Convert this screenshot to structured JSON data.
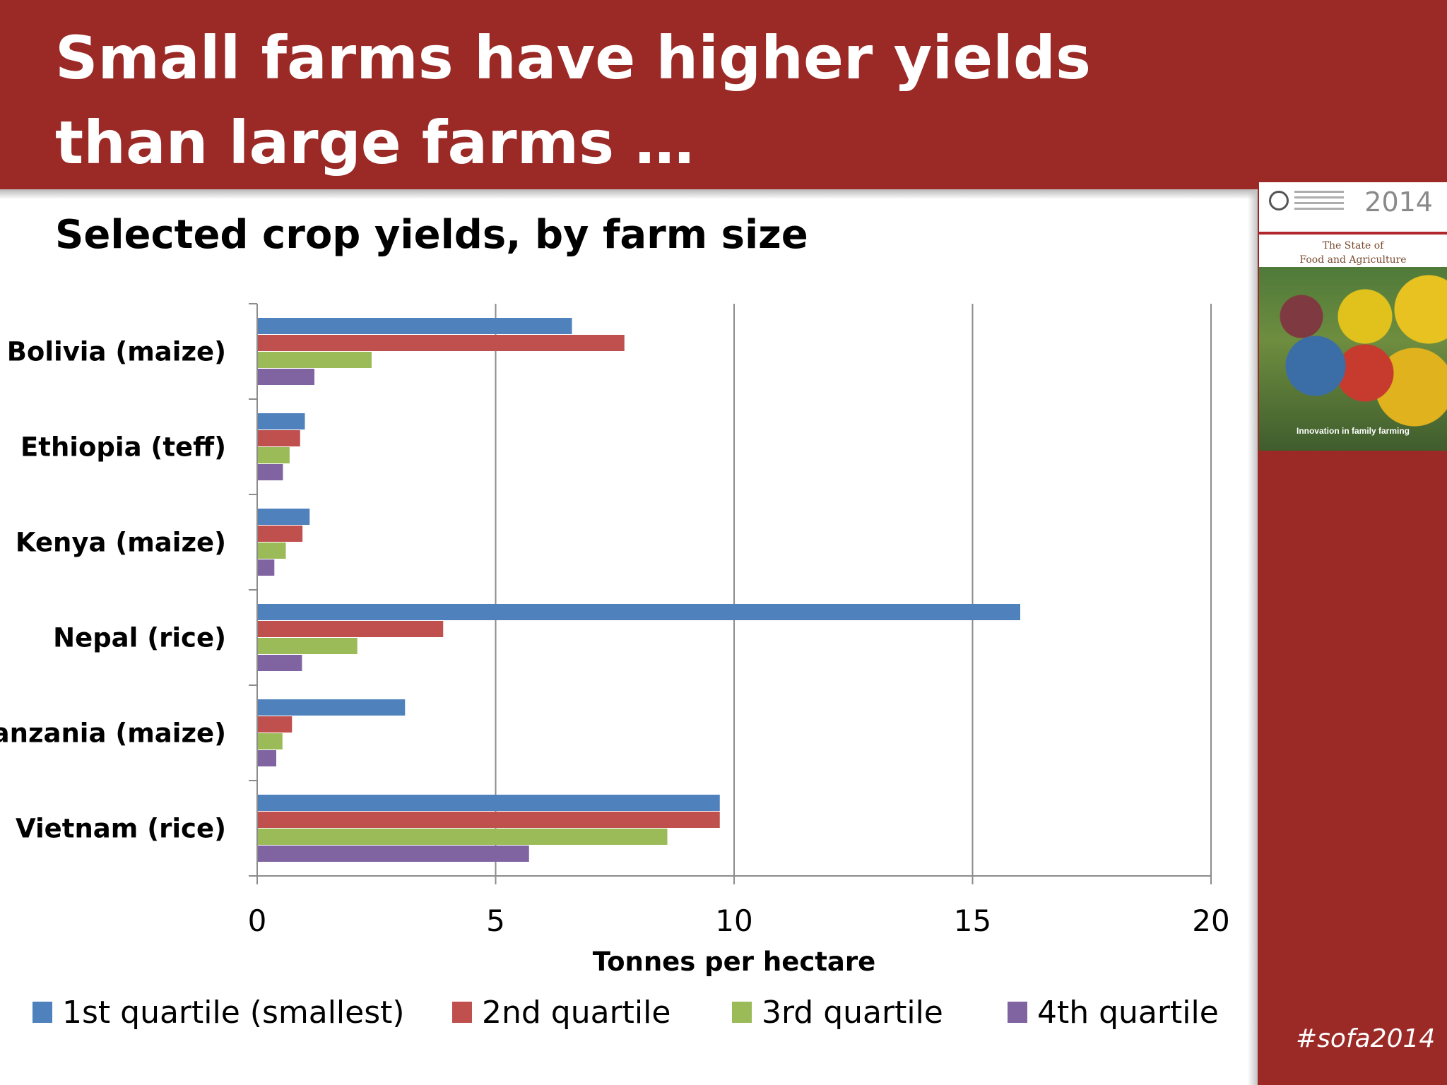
{
  "slide": {
    "title": "Small farms have higher yields than large farms …",
    "hashtag": "#sofa2014"
  },
  "cover": {
    "year": "2014",
    "subtitle_line1": "The State of",
    "subtitle_line2": "Food and Agriculture",
    "caption": "Innovation in family farming"
  },
  "chart_data": {
    "type": "bar",
    "orientation": "horizontal",
    "title": "Selected crop yields, by farm size",
    "xlabel": "Tonnes per hectare",
    "ylabel": "",
    "xlim": [
      0,
      20
    ],
    "xticks": [
      0,
      5,
      10,
      15,
      20
    ],
    "grid": true,
    "legend_position": "bottom",
    "categories": [
      "Bolivia (maize)",
      "Ethiopia (teff)",
      "Kenya (maize)",
      "Nepal (rice)",
      "Tanzania (maize)",
      "Vietnam (rice)"
    ],
    "series": [
      {
        "name": "1st quartile (smallest)",
        "color": "#4f81bd",
        "values": [
          6.6,
          1.0,
          1.1,
          16.0,
          3.1,
          9.7
        ]
      },
      {
        "name": "2nd quartile",
        "color": "#c0504d",
        "values": [
          7.7,
          0.9,
          0.95,
          3.9,
          0.73,
          9.7
        ]
      },
      {
        "name": "3rd quartile",
        "color": "#9bbb59",
        "values": [
          2.4,
          0.68,
          0.6,
          2.1,
          0.53,
          8.6
        ]
      },
      {
        "name": "4th quartile",
        "color": "#8064a2",
        "values": [
          1.2,
          0.54,
          0.36,
          0.94,
          0.4,
          5.7
        ]
      }
    ]
  }
}
